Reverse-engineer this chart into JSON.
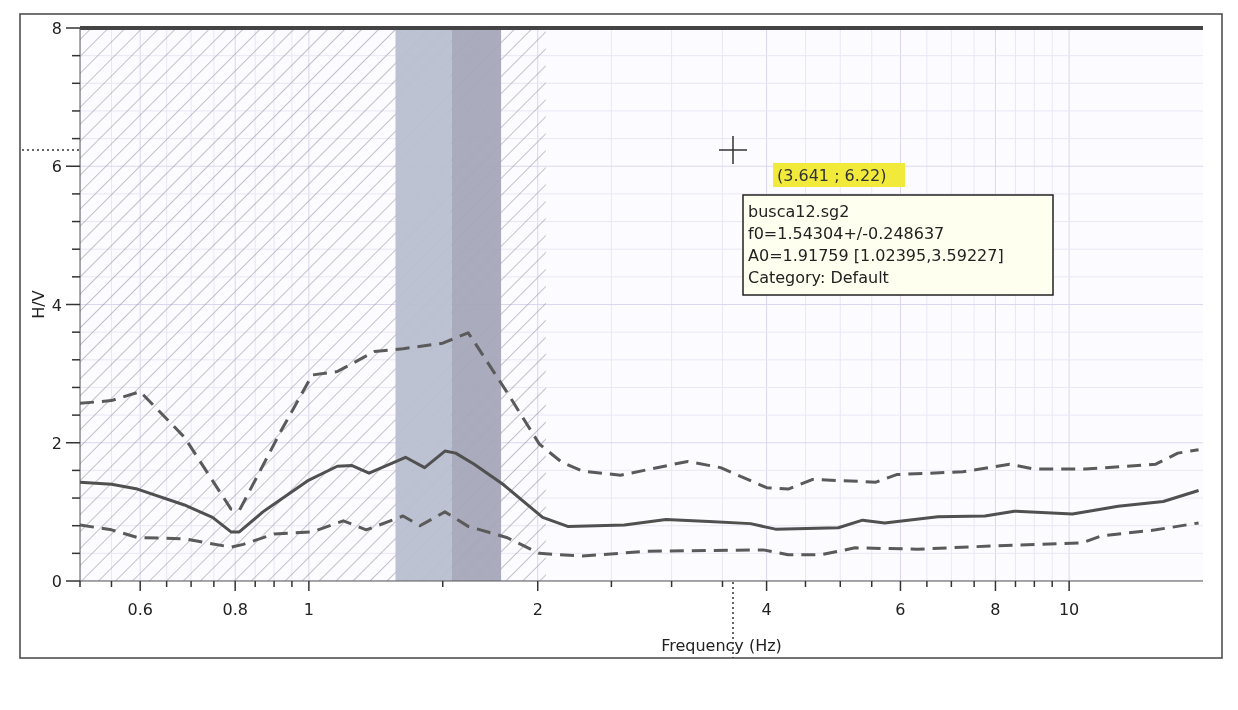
{
  "chart_data": {
    "type": "line",
    "xlabel": "Frequency (Hz)",
    "ylabel": "H/V",
    "log": "x",
    "grid": true,
    "xlim": [
      0.5,
      15
    ],
    "ylim": [
      0,
      8
    ],
    "xticks": [
      {
        "value": 0.5,
        "label": null
      },
      {
        "value": 0.55,
        "label": null
      },
      0.6,
      {
        "value": 0.65,
        "label": null
      },
      {
        "value": 0.7,
        "label": null
      },
      {
        "value": 0.75,
        "label": null
      },
      0.8,
      {
        "value": 0.85,
        "label": null
      },
      {
        "value": 0.9,
        "label": null
      },
      {
        "value": 0.95,
        "label": null
      },
      1,
      {
        "value": 1.5,
        "label": null
      },
      2,
      {
        "value": 2.5,
        "label": null
      },
      {
        "value": 3,
        "label": null
      },
      {
        "value": 3.5,
        "label": null
      },
      4,
      {
        "value": 4.5,
        "label": null
      },
      {
        "value": 5,
        "label": null
      },
      {
        "value": 5.5,
        "label": null
      },
      6,
      {
        "value": 6.5,
        "label": null
      },
      {
        "value": 7,
        "label": null
      },
      {
        "value": 7.5,
        "label": null
      },
      8,
      {
        "value": 8.5,
        "label": null
      },
      {
        "value": 9,
        "label": null
      },
      {
        "value": 9.5,
        "label": null
      },
      10
    ],
    "yticks": [
      0,
      {
        "value": 0.4,
        "label": null
      },
      {
        "value": 0.8,
        "label": null
      },
      {
        "value": 1.2,
        "label": null
      },
      {
        "value": 1.6,
        "label": null
      },
      2,
      {
        "value": 2.4,
        "label": null
      },
      {
        "value": 2.8,
        "label": null
      },
      {
        "value": 3.2,
        "label": null
      },
      {
        "value": 3.6,
        "label": null
      },
      4,
      {
        "value": 4.4,
        "label": null
      },
      {
        "value": 4.8,
        "label": null
      },
      {
        "value": 5.2,
        "label": null
      },
      {
        "value": 5.6,
        "label": null
      },
      6,
      {
        "value": 6.4,
        "label": null
      },
      {
        "value": 6.8,
        "label": null
      },
      {
        "value": 7.2,
        "label": null
      },
      {
        "value": 7.6,
        "label": null
      },
      8
    ],
    "series": [
      {
        "color": "#505050",
        "line_style": "solid",
        "x": [
          0.5,
          0.55,
          0.595,
          0.686,
          0.747,
          0.79,
          0.81,
          0.87,
          1.0,
          1.09,
          1.14,
          1.2,
          1.34,
          1.42,
          1.51,
          1.56,
          1.65,
          1.8,
          2.03,
          2.19,
          2.6,
          2.95,
          3.36,
          3.81,
          4.11,
          4.97,
          5.35,
          5.72,
          6.72,
          7.75,
          8.47,
          10.1,
          11.6,
          13.3,
          14.8
        ],
        "values": [
          1.43,
          1.4,
          1.33,
          1.1,
          0.92,
          0.71,
          0.71,
          1.0,
          1.46,
          1.66,
          1.67,
          1.56,
          1.79,
          1.64,
          1.88,
          1.85,
          1.69,
          1.4,
          0.92,
          0.79,
          0.81,
          0.89,
          0.86,
          0.83,
          0.75,
          0.77,
          0.88,
          0.84,
          0.93,
          0.94,
          1.01,
          0.97,
          1.08,
          1.15,
          1.31
        ]
      },
      {
        "color": "#5a5a5a",
        "line_style": "dashed",
        "x": [
          0.5,
          0.55,
          0.6,
          0.686,
          0.79,
          0.81,
          0.92,
          1.01,
          1.09,
          1.22,
          1.33,
          1.5,
          1.62,
          1.65,
          1.82,
          2.01,
          2.15,
          2.29,
          2.57,
          3.15,
          3.48,
          4.0,
          4.27,
          4.6,
          5.57,
          5.93,
          7.25,
          8.35,
          9.0,
          10.5,
          13.0,
          13.9,
          14.8
        ],
        "values": [
          2.57,
          2.61,
          2.74,
          2.08,
          1.04,
          1.02,
          2.18,
          2.98,
          3.03,
          3.32,
          3.36,
          3.44,
          3.59,
          3.46,
          2.74,
          1.98,
          1.72,
          1.59,
          1.53,
          1.73,
          1.64,
          1.35,
          1.33,
          1.47,
          1.43,
          1.54,
          1.58,
          1.69,
          1.62,
          1.62,
          1.69,
          1.85,
          1.9
        ]
      },
      {
        "color": "#5a5a5a",
        "line_style": "dashed",
        "x": [
          0.5,
          0.55,
          0.595,
          0.686,
          0.79,
          0.82,
          0.9,
          1.01,
          1.11,
          1.19,
          1.33,
          1.4,
          1.51,
          1.62,
          1.82,
          2.01,
          2.29,
          2.77,
          3.96,
          4.27,
          4.72,
          5.23,
          6.32,
          8.03,
          10.4,
          11.0,
          13.0,
          14.8
        ],
        "values": [
          0.81,
          0.74,
          0.63,
          0.61,
          0.49,
          0.53,
          0.68,
          0.71,
          0.87,
          0.74,
          0.94,
          0.8,
          1.0,
          0.79,
          0.63,
          0.4,
          0.36,
          0.43,
          0.45,
          0.38,
          0.38,
          0.48,
          0.46,
          0.51,
          0.55,
          0.65,
          0.74,
          0.84
        ]
      }
    ],
    "bands": [
      {
        "axis": "x",
        "from": 0.5,
        "to": 2.05,
        "color": "#8a8a9a"
      },
      {
        "axis": "x",
        "from": 1.3,
        "to": 1.54,
        "color": "#b9bfd0"
      },
      {
        "axis": "x",
        "from": 1.54,
        "to": 1.79,
        "color": "#a5a7b8"
      }
    ],
    "annotations": [
      "(3.641 ; 6.22)",
      "busca12.sg2",
      "f0=1.54304+/-0.248637",
      "A0=1.91759 [1.02395,3.59227]",
      "Category: Default"
    ]
  }
}
